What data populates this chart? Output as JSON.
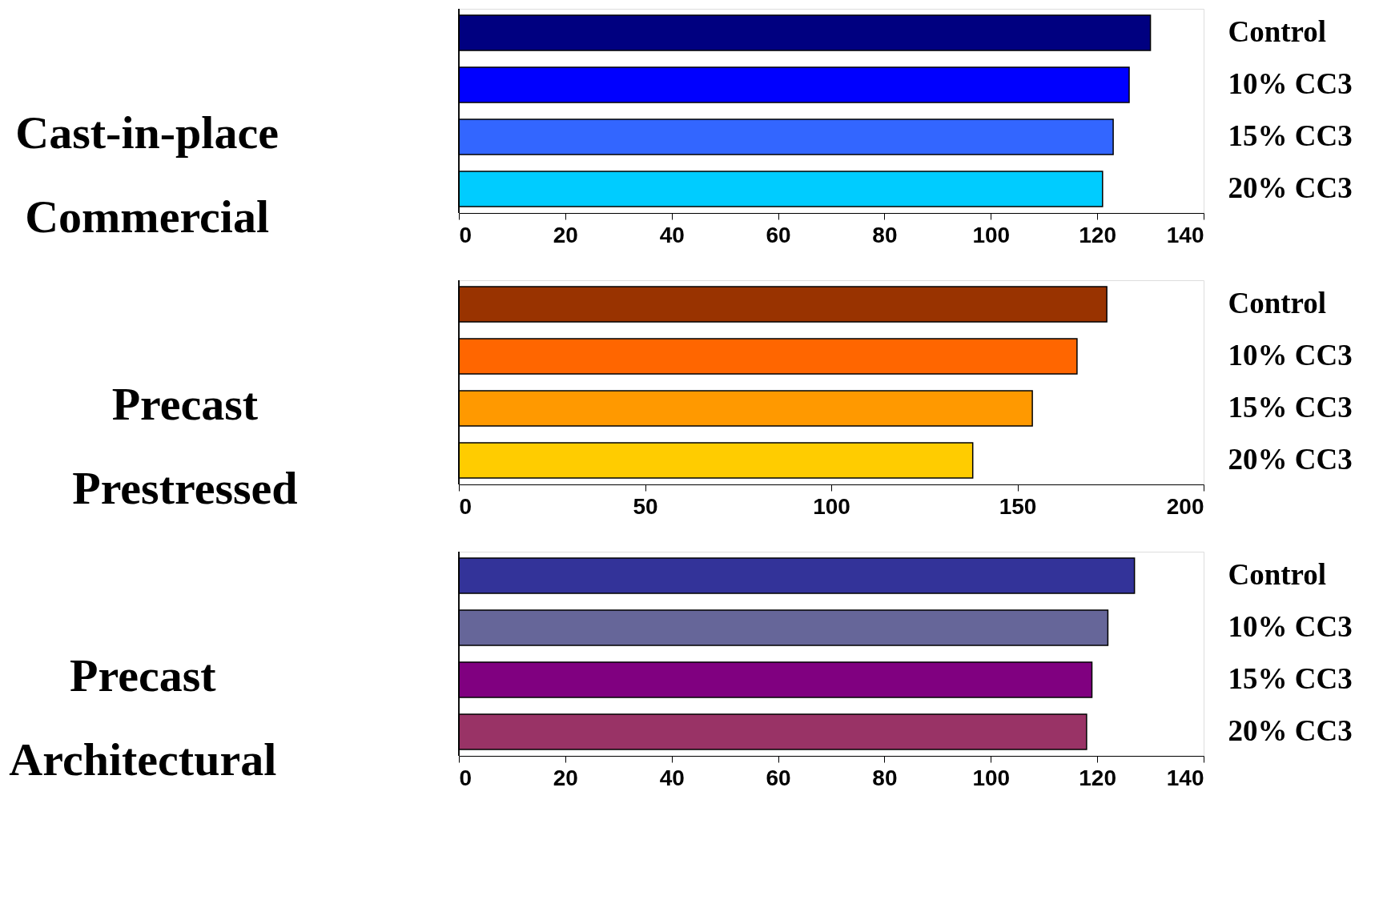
{
  "chart_data": [
    {
      "type": "bar",
      "orientation": "horizontal",
      "ylabel": "Cast-in-place Commercial",
      "categories": [
        "Control",
        "10% CC3",
        "15% CC3",
        "20% CC3"
      ],
      "values": [
        130,
        126,
        123,
        121
      ],
      "colors": [
        "#000080",
        "#0000ff",
        "#3366ff",
        "#00ccff"
      ],
      "xlim": [
        0,
        140
      ],
      "xticks": [
        0,
        20,
        40,
        60,
        80,
        100,
        120,
        140
      ],
      "grid": false
    },
    {
      "type": "bar",
      "orientation": "horizontal",
      "ylabel": "Precast Prestressed",
      "categories": [
        "Control",
        "10% CC3",
        "15% CC3",
        "20% CC3"
      ],
      "values": [
        174,
        166,
        154,
        138
      ],
      "colors": [
        "#993300",
        "#ff6600",
        "#ff9900",
        "#ffcc00"
      ],
      "xlim": [
        0,
        200
      ],
      "xticks": [
        0,
        50,
        100,
        150,
        200
      ],
      "grid": false
    },
    {
      "type": "bar",
      "orientation": "horizontal",
      "ylabel": "Precast Architectural",
      "categories": [
        "Control",
        "10% CC3",
        "15% CC3",
        "20% CC3"
      ],
      "values": [
        127,
        122,
        119,
        118
      ],
      "colors": [
        "#333399",
        "#666699",
        "#800080",
        "#993366"
      ],
      "xlim": [
        0,
        140
      ],
      "xticks": [
        0,
        20,
        40,
        60,
        80,
        100,
        120,
        140
      ],
      "grid": false
    }
  ]
}
